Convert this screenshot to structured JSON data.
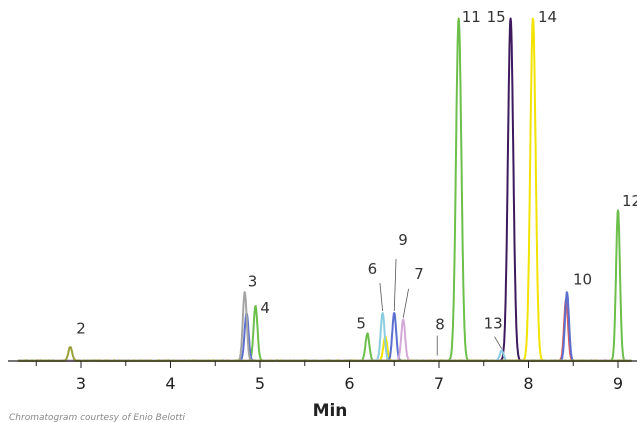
{
  "chart_data": {
    "type": "line",
    "xlabel": "Min",
    "xlim": [
      2.3,
      9.15
    ],
    "ylim": [
      0,
      100
    ],
    "x_ticks": [
      3,
      4,
      5,
      6,
      7,
      8,
      9
    ],
    "credit": "Chromatogram courtesy of Enio Belotti",
    "grid": false,
    "series": [
      {
        "color": "#6cbf4a",
        "points": [
          [
            4.95,
            16
          ],
          [
            6.2,
            8
          ],
          [
            7.22,
            100
          ],
          [
            9.0,
            44
          ]
        ]
      },
      {
        "color": "#3d1a5e",
        "points": [
          [
            7.8,
            100
          ]
        ]
      },
      {
        "color": "#f2e300",
        "points": [
          [
            6.4,
            7
          ],
          [
            8.05,
            100
          ]
        ]
      },
      {
        "color": "#e05a5a",
        "points": [
          [
            8.42,
            18
          ]
        ]
      },
      {
        "color": "#5a6fd0",
        "points": [
          [
            4.85,
            14
          ],
          [
            6.5,
            14
          ],
          [
            8.43,
            20
          ]
        ]
      },
      {
        "color": "#a5a5a5",
        "points": [
          [
            4.83,
            20
          ]
        ]
      },
      {
        "color": "#8bcde0",
        "points": [
          [
            6.37,
            14
          ],
          [
            7.7,
            3
          ]
        ]
      },
      {
        "color": "#d4a8d8",
        "points": [
          [
            6.6,
            12
          ]
        ]
      },
      {
        "color": "#9ba03a",
        "points": [
          [
            2.88,
            4
          ]
        ]
      }
    ],
    "peaks": [
      {
        "label": "2",
        "x": 2.88,
        "y": 4
      },
      {
        "label": "3",
        "x": 4.83,
        "y": 20
      },
      {
        "label": "4",
        "x": 4.97,
        "y": 16
      },
      {
        "label": "5",
        "x": 6.2,
        "y": 8
      },
      {
        "label": "6",
        "x": 6.37,
        "y": 14
      },
      {
        "label": "7",
        "x": 6.6,
        "y": 12
      },
      {
        "label": "8",
        "x": 6.98,
        "y": 1
      },
      {
        "label": "9",
        "x": 6.5,
        "y": 14
      },
      {
        "label": "10",
        "x": 8.43,
        "y": 20
      },
      {
        "label": "11",
        "x": 7.22,
        "y": 100
      },
      {
        "label": "12",
        "x": 9.0,
        "y": 44
      },
      {
        "label": "13",
        "x": 7.7,
        "y": 3
      },
      {
        "label": "14",
        "x": 8.05,
        "y": 100
      },
      {
        "label": "15",
        "x": 7.8,
        "y": 100
      }
    ]
  }
}
